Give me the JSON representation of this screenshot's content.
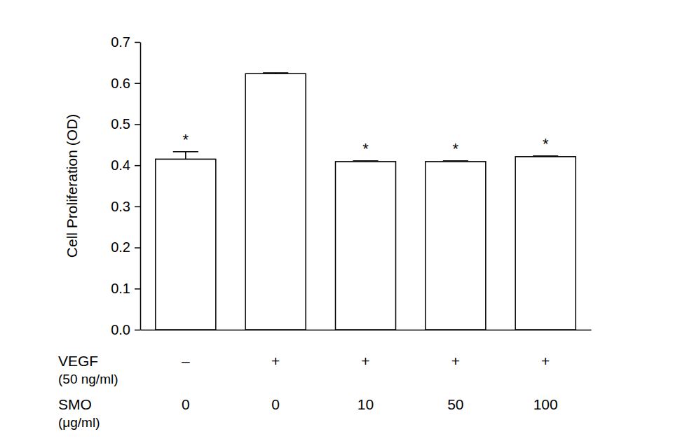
{
  "chart_data": {
    "type": "bar",
    "y_label": "Cell Proliferation (OD)",
    "categories": [
      [
        "–",
        "0"
      ],
      [
        "+",
        "0"
      ],
      [
        "+",
        "10"
      ],
      [
        "+",
        "50"
      ],
      [
        "+",
        "100"
      ]
    ],
    "category_titles": [
      [
        "VEGF",
        "(50 ng/ml)"
      ],
      [
        "SMO",
        "(μg/ml)"
      ]
    ],
    "values": [
      0.415,
      0.623,
      0.409,
      0.409,
      0.421
    ],
    "errors": [
      0.018,
      0.002,
      0.002,
      0.002,
      0.002
    ],
    "annotations": [
      "*",
      null,
      "*",
      "*",
      "*"
    ],
    "color": "#ffffff",
    "ylim": [
      0,
      0.7
    ],
    "yticks": [
      {
        "value": 0,
        "label": "0.0"
      },
      0.1,
      0.2,
      0.3,
      0.4,
      0.5,
      0.6,
      0.7
    ],
    "grid": false
  }
}
